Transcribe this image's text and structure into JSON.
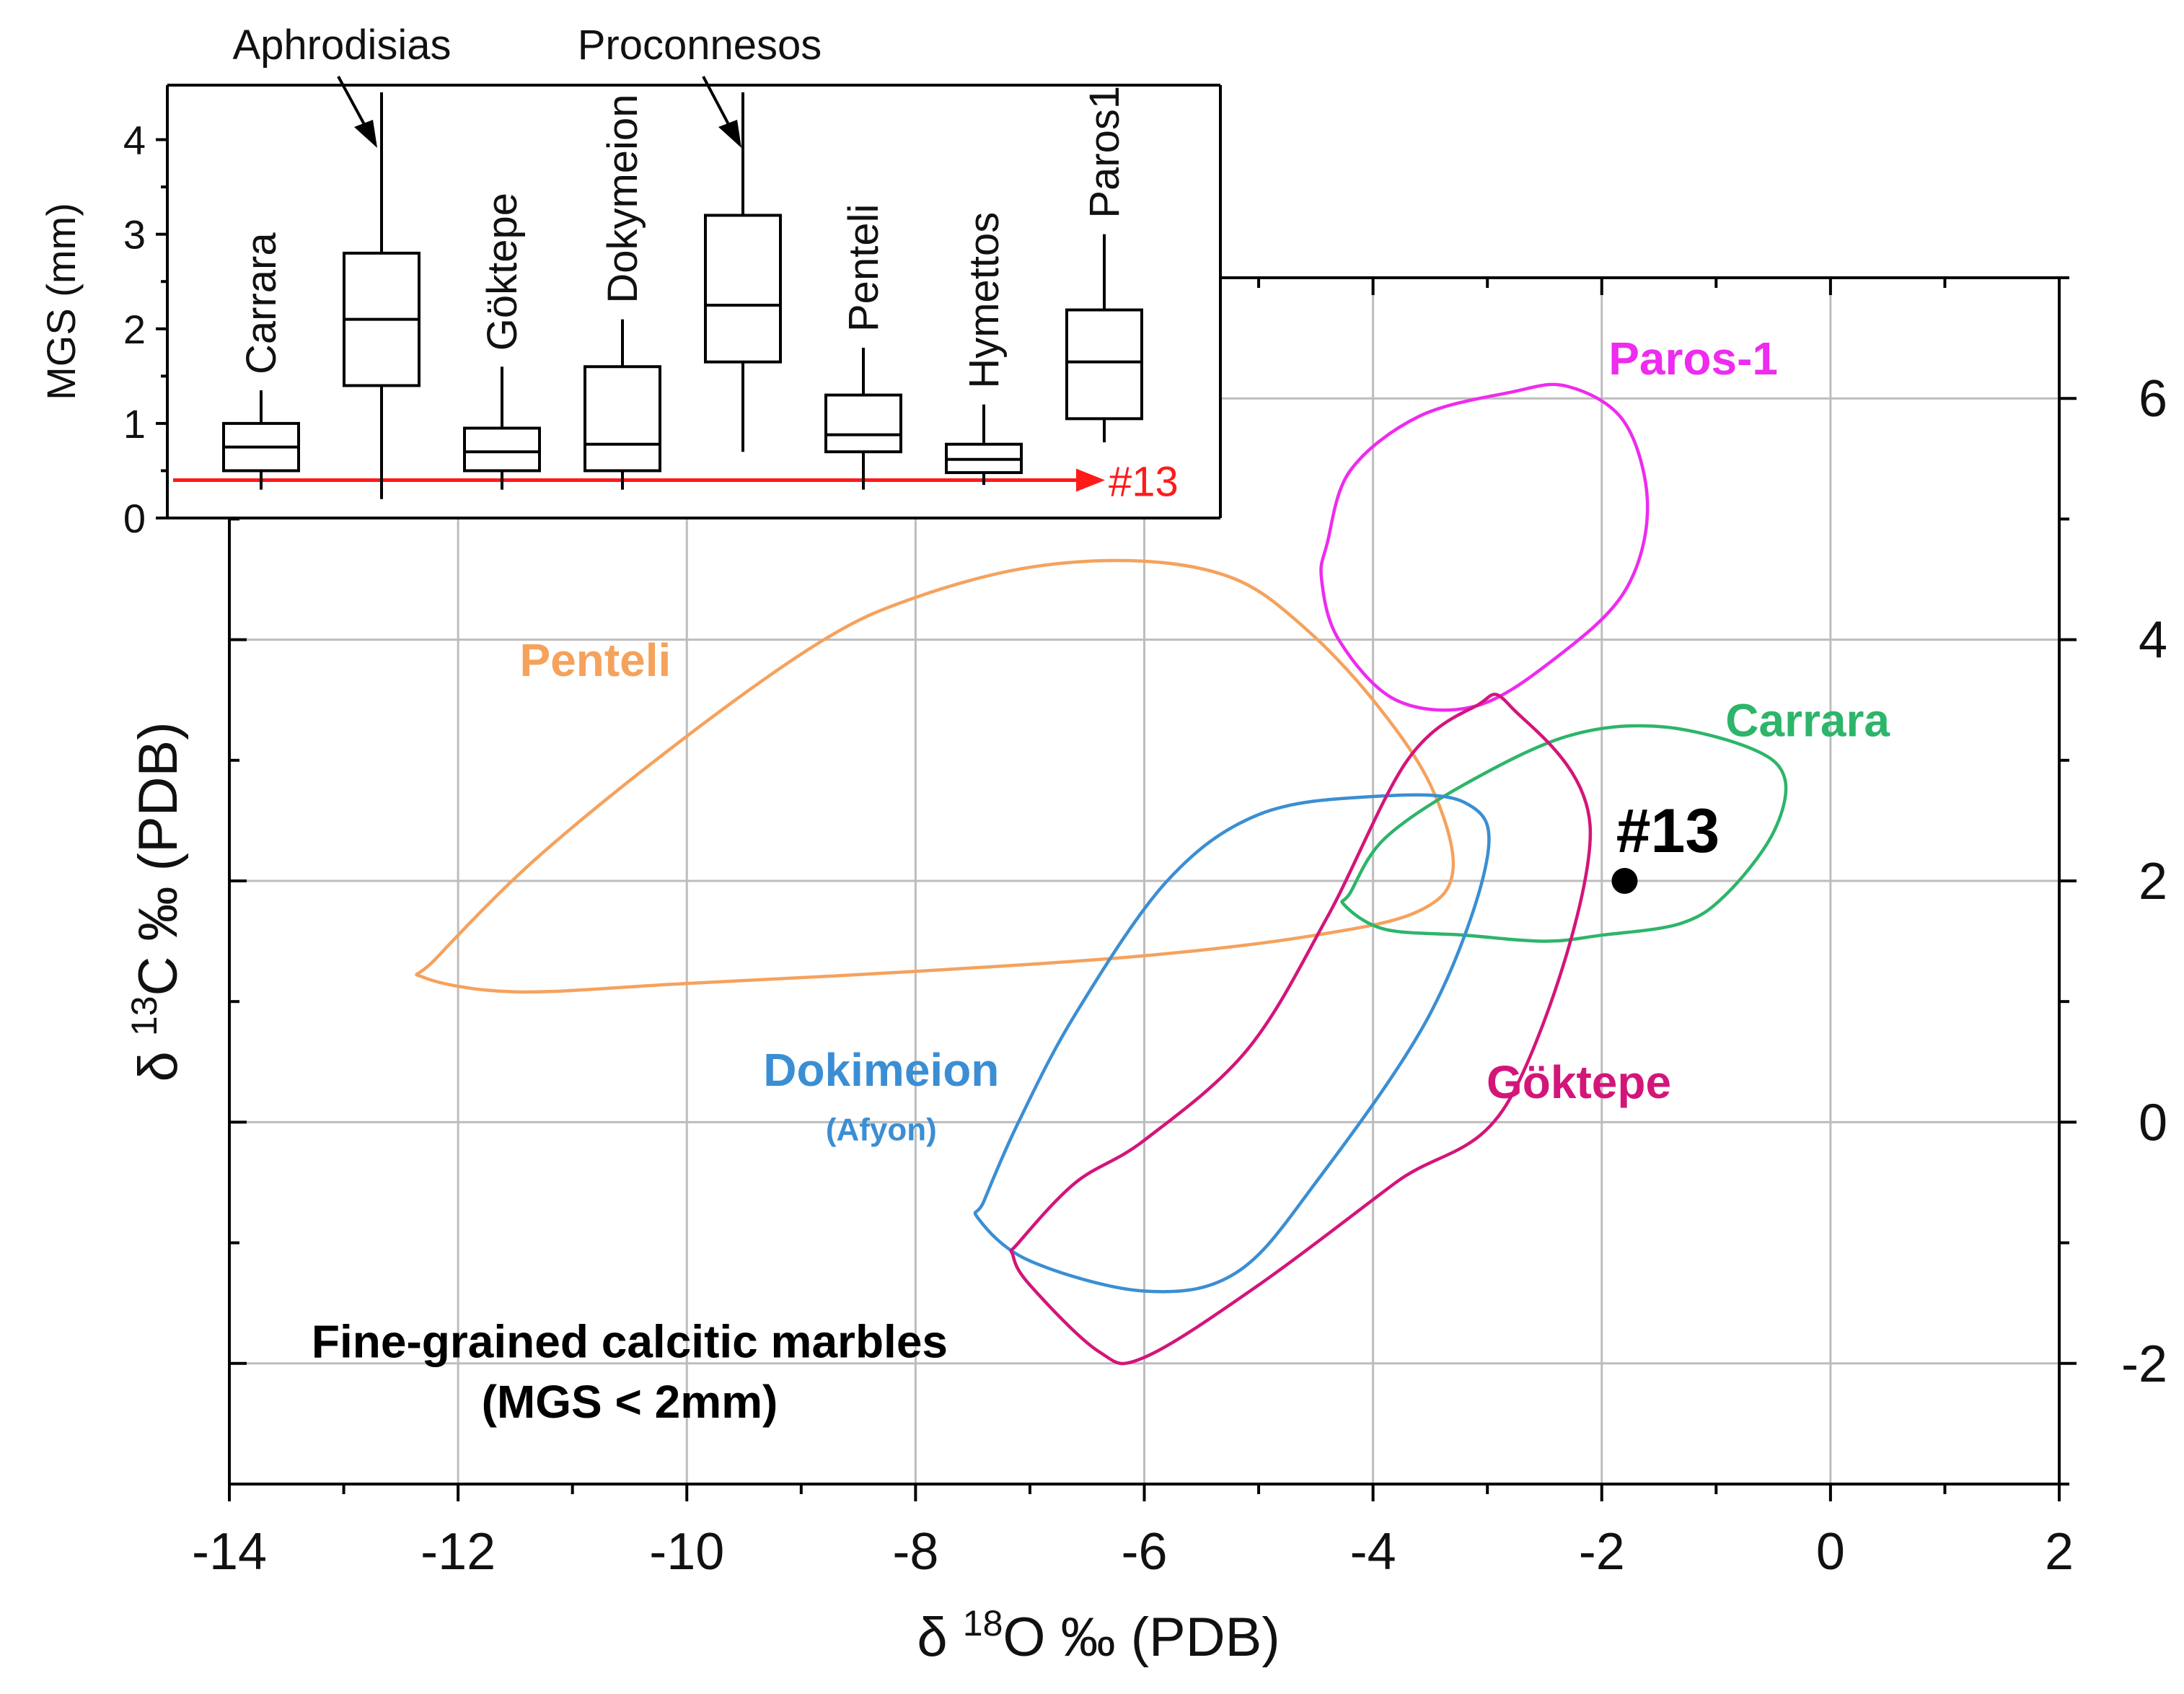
{
  "chart_data": [
    {
      "type": "scatter",
      "title": "",
      "xlabel": "δ ¹⁸O ‰ (PDB)",
      "ylabel": "δ ¹³C ‰ (PDB)",
      "xlabel_parts": {
        "prefix": "δ ",
        "sup": "18",
        "suffix": "O ‰ (PDB)"
      },
      "ylabel_parts": {
        "prefix": "δ ",
        "sup": "13",
        "suffix": "C ‰ (PDB)"
      },
      "xlim": [
        -14,
        2
      ],
      "ylim": [
        -3,
        7
      ],
      "x_ticks": [
        -14,
        -12,
        -10,
        -8,
        -6,
        -4,
        -2,
        0,
        2
      ],
      "x_tick_labels": [
        "-14",
        "-12",
        "-10",
        "-8",
        "-6",
        "-4",
        "-2",
        "0",
        "2"
      ],
      "y_ticks": [
        -2,
        0,
        2,
        4,
        6
      ],
      "y_tick_labels": [
        "-2",
        "0",
        "2",
        "4",
        "6"
      ],
      "y_axis_side": "right",
      "grid": true,
      "regions": [
        {
          "name": "Penteli",
          "label": "Penteli",
          "color": "#F5A25D",
          "label_at": [
            -10.8,
            3.7
          ],
          "points": [
            [
              -12.2,
              1.35
            ],
            [
              -11.3,
              2.2
            ],
            [
              -10.0,
              3.2
            ],
            [
              -8.8,
              4.0
            ],
            [
              -8.0,
              4.35
            ],
            [
              -7.0,
              4.6
            ],
            [
              -6.0,
              4.65
            ],
            [
              -5.2,
              4.5
            ],
            [
              -4.6,
              4.1
            ],
            [
              -4.0,
              3.5
            ],
            [
              -3.5,
              2.8
            ],
            [
              -3.3,
              2.1
            ],
            [
              -3.6,
              1.75
            ],
            [
              -4.5,
              1.55
            ],
            [
              -6.0,
              1.38
            ],
            [
              -8.0,
              1.25
            ],
            [
              -10.0,
              1.15
            ],
            [
              -11.5,
              1.08
            ],
            [
              -12.3,
              1.2
            ]
          ]
        },
        {
          "name": "Paros-1",
          "label": "Paros-1",
          "color": "#EE2BEE",
          "label_at": [
            -1.2,
            6.2
          ],
          "points": [
            [
              -4.4,
              4.8
            ],
            [
              -4.2,
              5.4
            ],
            [
              -3.6,
              5.85
            ],
            [
              -2.8,
              6.05
            ],
            [
              -2.3,
              6.1
            ],
            [
              -1.8,
              5.8
            ],
            [
              -1.6,
              5.1
            ],
            [
              -1.8,
              4.4
            ],
            [
              -2.4,
              3.85
            ],
            [
              -3.1,
              3.45
            ],
            [
              -3.8,
              3.5
            ],
            [
              -4.3,
              4.0
            ],
            [
              -4.45,
              4.5
            ]
          ]
        },
        {
          "name": "Carrara",
          "label": "Carrara",
          "color": "#2DB56A",
          "label_at": [
            -0.2,
            3.2
          ],
          "points": [
            [
              -4.2,
              1.9
            ],
            [
              -3.9,
              2.35
            ],
            [
              -3.2,
              2.8
            ],
            [
              -2.3,
              3.2
            ],
            [
              -1.5,
              3.28
            ],
            [
              -0.7,
              3.1
            ],
            [
              -0.4,
              2.85
            ],
            [
              -0.5,
              2.4
            ],
            [
              -0.9,
              1.9
            ],
            [
              -1.3,
              1.65
            ],
            [
              -2.0,
              1.55
            ],
            [
              -2.5,
              1.5
            ],
            [
              -3.2,
              1.55
            ],
            [
              -3.9,
              1.6
            ],
            [
              -4.25,
              1.8
            ]
          ]
        },
        {
          "name": "Dokimeion",
          "label": "Dokimeion",
          "sublabel": "(Afyon)",
          "color": "#3B8ED3",
          "label_at": [
            -8.3,
            0.3
          ],
          "sublabel_at": [
            -8.3,
            -0.15
          ],
          "points": [
            [
              -7.4,
              -0.65
            ],
            [
              -7.1,
              0.0
            ],
            [
              -6.6,
              0.9
            ],
            [
              -5.8,
              2.0
            ],
            [
              -5.0,
              2.55
            ],
            [
              -4.0,
              2.7
            ],
            [
              -3.2,
              2.65
            ],
            [
              -3.0,
              2.2
            ],
            [
              -3.5,
              0.9
            ],
            [
              -4.5,
              -0.5
            ],
            [
              -5.2,
              -1.25
            ],
            [
              -6.0,
              -1.4
            ],
            [
              -7.0,
              -1.15
            ],
            [
              -7.45,
              -0.8
            ]
          ]
        },
        {
          "name": "Göktepe",
          "label": "Göktepe",
          "color": "#D3157A",
          "label_at": [
            -2.2,
            0.2
          ],
          "points": [
            [
              -7.1,
              -1.0
            ],
            [
              -6.6,
              -0.5
            ],
            [
              -6.0,
              -0.15
            ],
            [
              -5.1,
              0.6
            ],
            [
              -4.4,
              1.7
            ],
            [
              -3.7,
              3.0
            ],
            [
              -3.1,
              3.45
            ],
            [
              -2.8,
              3.45
            ],
            [
              -2.1,
              2.4
            ],
            [
              -2.8,
              0.2
            ],
            [
              -3.8,
              -0.5
            ],
            [
              -5.0,
              -1.35
            ],
            [
              -6.0,
              -1.95
            ],
            [
              -6.4,
              -1.9
            ],
            [
              -7.0,
              -1.35
            ],
            [
              -7.15,
              -1.1
            ]
          ]
        }
      ],
      "points": [
        {
          "label": "#13",
          "x": -1.8,
          "y": 2.0,
          "color": "#000000"
        }
      ],
      "annotations": [
        {
          "text": "Fine-grained calcitic marbles",
          "at": [
            -10.5,
            -1.95
          ]
        },
        {
          "text": "(MGS < 2mm)",
          "at": [
            -10.5,
            -2.45
          ]
        }
      ]
    },
    {
      "type": "box",
      "title": "",
      "ylabel": "MGS (mm)",
      "ylim": [
        0,
        4.5
      ],
      "y_ticks": [
        0,
        1,
        2,
        3,
        4
      ],
      "y_tick_labels": [
        "0",
        "1",
        "2",
        "3",
        "4"
      ],
      "categories": [
        "Carrara",
        "Aphrodisias",
        "Göktepe",
        "Dokymeion",
        "Proconnesos",
        "Penteli",
        "Hymettos",
        "Paros1"
      ],
      "boxes": [
        {
          "name": "Carrara",
          "min": 0.3,
          "q1": 0.5,
          "median": 0.75,
          "q3": 1.0,
          "max": 1.35,
          "label_rotated": true
        },
        {
          "name": "Aphrodisias",
          "min": 0.2,
          "q1": 1.4,
          "median": 2.1,
          "q3": 2.8,
          "max": 4.5,
          "label_rotated": false,
          "label_with_arrow": true
        },
        {
          "name": "Göktepe",
          "min": 0.3,
          "q1": 0.5,
          "median": 0.7,
          "q3": 0.95,
          "max": 1.6,
          "label_rotated": true
        },
        {
          "name": "Dokymeion",
          "min": 0.3,
          "q1": 0.5,
          "median": 0.78,
          "q3": 1.6,
          "max": 2.1,
          "label_rotated": true
        },
        {
          "name": "Proconnesos",
          "min": 0.7,
          "q1": 1.65,
          "median": 2.25,
          "q3": 3.2,
          "max": 4.5,
          "label_rotated": false,
          "label_with_arrow": true
        },
        {
          "name": "Penteli",
          "min": 0.3,
          "q1": 0.7,
          "median": 0.88,
          "q3": 1.3,
          "max": 1.8,
          "label_rotated": true
        },
        {
          "name": "Hymettos",
          "min": 0.35,
          "q1": 0.48,
          "median": 0.62,
          "q3": 0.78,
          "max": 1.2,
          "label_rotated": true
        },
        {
          "name": "Paros1",
          "min": 0.8,
          "q1": 1.05,
          "median": 1.65,
          "q3": 2.2,
          "max": 3.0,
          "label_rotated": true
        }
      ],
      "reference_line": {
        "label": "#13",
        "value": 0.4,
        "color": "#FF1A1A"
      }
    }
  ]
}
